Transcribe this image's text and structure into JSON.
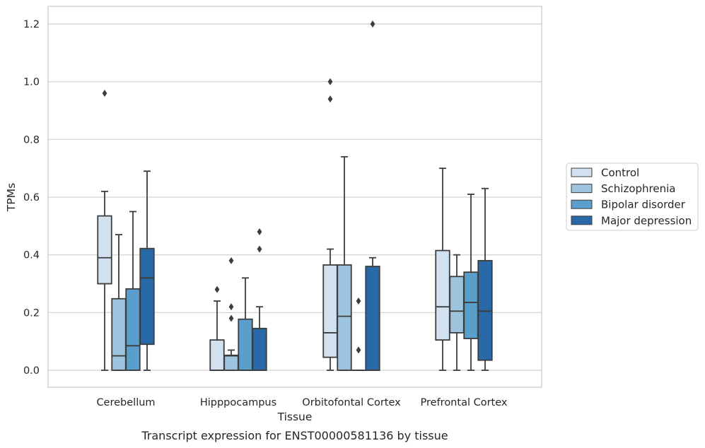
{
  "chart_data": {
    "type": "box",
    "xlabel": "Tissue",
    "ylabel": "TPMs",
    "caption": "Transcript expression for ENST00000581136 by tissue",
    "ylim": [
      -0.06,
      1.26
    ],
    "yticks": [
      "0.0",
      "0.2",
      "0.4",
      "0.6",
      "0.8",
      "1.0",
      "1.2"
    ],
    "grid": "horizontal",
    "legend_position": "right",
    "categories": [
      "Cerebellum",
      "Hipppocampus",
      "Orbitofontal Cortex",
      "Prefrontal Cortex"
    ],
    "series": [
      {
        "name": "Control",
        "color": "#d1e1f0",
        "boxes": [
          {
            "whislo": 0.0,
            "q1": 0.3,
            "med": 0.39,
            "q3": 0.535,
            "whishi": 0.62,
            "fliers": [
              0.96
            ]
          },
          {
            "whislo": 0.0,
            "q1": 0.0,
            "med": 0.0,
            "q3": 0.105,
            "whishi": 0.24,
            "fliers": [
              0.28
            ]
          },
          {
            "whislo": 0.0,
            "q1": 0.045,
            "med": 0.13,
            "q3": 0.365,
            "whishi": 0.42,
            "fliers": [
              0.94,
              1.0
            ]
          },
          {
            "whislo": 0.0,
            "q1": 0.105,
            "med": 0.22,
            "q3": 0.415,
            "whishi": 0.7,
            "fliers": []
          }
        ]
      },
      {
        "name": "Schizophrenia",
        "color": "#9cc4de",
        "boxes": [
          {
            "whislo": 0.0,
            "q1": 0.0,
            "med": 0.05,
            "q3": 0.248,
            "whishi": 0.47,
            "fliers": []
          },
          {
            "whislo": 0.0,
            "q1": 0.0,
            "med": 0.05,
            "q3": 0.052,
            "whishi": 0.07,
            "fliers": [
              0.18,
              0.22,
              0.38
            ]
          },
          {
            "whislo": 0.0,
            "q1": 0.0,
            "med": 0.187,
            "q3": 0.365,
            "whishi": 0.74,
            "fliers": []
          },
          {
            "whislo": 0.0,
            "q1": 0.13,
            "med": 0.205,
            "q3": 0.325,
            "whishi": 0.4,
            "fliers": []
          }
        ]
      },
      {
        "name": "Bipolar disorder",
        "color": "#5a9ecb",
        "boxes": [
          {
            "whislo": 0.0,
            "q1": 0.0,
            "med": 0.085,
            "q3": 0.282,
            "whishi": 0.55,
            "fliers": []
          },
          {
            "whislo": 0.0,
            "q1": 0.0,
            "med": 0.0,
            "q3": 0.177,
            "whishi": 0.32,
            "fliers": []
          },
          {
            "whislo": 0.0,
            "q1": 0.0,
            "med": 0.0,
            "q3": 0.0,
            "whishi": 0.0,
            "fliers": [
              0.07,
              0.24
            ]
          },
          {
            "whislo": 0.0,
            "q1": 0.11,
            "med": 0.235,
            "q3": 0.34,
            "whishi": 0.61,
            "fliers": []
          }
        ]
      },
      {
        "name": "Major depression",
        "color": "#2a69a8",
        "boxes": [
          {
            "whislo": 0.0,
            "q1": 0.09,
            "med": 0.32,
            "q3": 0.422,
            "whishi": 0.69,
            "fliers": []
          },
          {
            "whislo": 0.0,
            "q1": 0.0,
            "med": 0.0,
            "q3": 0.145,
            "whishi": 0.22,
            "fliers": [
              0.42,
              0.48
            ]
          },
          {
            "whislo": 0.0,
            "q1": 0.0,
            "med": 0.0,
            "q3": 0.36,
            "whishi": 0.39,
            "fliers": [
              1.2
            ]
          },
          {
            "whislo": 0.0,
            "q1": 0.035,
            "med": 0.205,
            "q3": 0.38,
            "whishi": 0.63,
            "fliers": []
          }
        ]
      }
    ]
  }
}
